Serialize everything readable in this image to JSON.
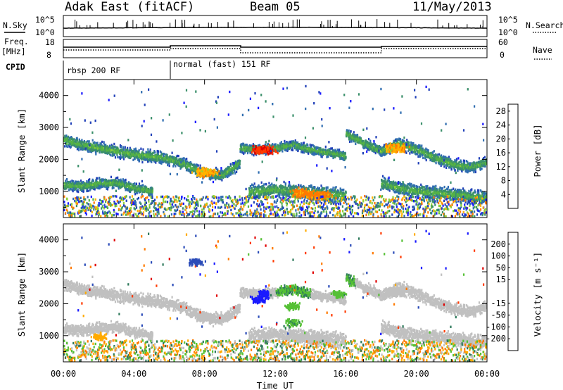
{
  "header": {
    "radar": "Adak East (fitACF)",
    "beam": "Beam 05",
    "date": "11/May/2013"
  },
  "strips": {
    "left_nsky": "N.Sky",
    "left_freq_top": "Freq.",
    "left_freq_unit": "[MHz]",
    "left_cpid": "CPID",
    "right_nsearch": "N.Search",
    "right_nave": "Nave",
    "noise_ticks_left": [
      "10^5",
      "10^0"
    ],
    "noise_ticks_right": [
      "10^5",
      "10^0"
    ],
    "freq_ticks": [
      "18",
      "8"
    ],
    "nave_ticks": [
      "60",
      "0"
    ],
    "cpid_labels": [
      "rbsp 200 RF",
      "normal (fast) 151 RF"
    ]
  },
  "colors": {
    "power_scale": [
      "#1a1aff",
      "#2040b8",
      "#2f6db0",
      "#3a8f6a",
      "#55b245",
      "#8fd23a",
      "#ffb400",
      "#ff7a00",
      "#ff3b00",
      "#e00000"
    ],
    "velocity_scale": [
      "#1a1aff",
      "#2a4bb8",
      "#2f7a5c",
      "#55c035",
      "#c0c0c0",
      "#c0c0c0",
      "#ffaa00",
      "#ff7a00",
      "#ff3a00",
      "#e00000"
    ]
  },
  "chart_data": [
    {
      "type": "heatmap",
      "name": "power",
      "xlabel": "Time UT",
      "ylabel": "Slant Range [km]",
      "x_ticks": [
        "00:00",
        "04:00",
        "08:00",
        "12:00",
        "16:00",
        "20:00",
        "00:00"
      ],
      "y_ticks": [
        1000,
        2000,
        3000,
        4000
      ],
      "xlim": [
        0,
        24
      ],
      "ylim": [
        180,
        4500
      ],
      "colorbar": {
        "label": "Power [dB]",
        "ticks": [
          4,
          8,
          12,
          16,
          20,
          24,
          28
        ],
        "range": [
          0,
          30
        ]
      },
      "bands": [
        {
          "t": [
            0,
            1,
            2,
            3,
            4,
            5,
            6,
            7,
            8,
            9,
            10
          ],
          "r": [
            2600,
            2450,
            2350,
            2250,
            2150,
            2100,
            2000,
            1800,
            1550,
            1500,
            1900
          ],
          "width": 280
        },
        {
          "t": [
            10,
            11,
            12,
            13,
            14,
            15,
            16
          ],
          "r": [
            2350,
            2300,
            2350,
            2450,
            2300,
            2200,
            2100
          ],
          "width": 220
        },
        {
          "t": [
            16,
            17,
            18,
            19,
            20,
            21,
            22,
            23,
            24
          ],
          "r": [
            2800,
            2500,
            2250,
            2500,
            2300,
            2050,
            1850,
            1750,
            1900
          ],
          "width": 260
        },
        {
          "t": [
            10.5,
            11,
            12,
            13,
            14,
            15,
            16
          ],
          "r": [
            950,
            1000,
            1050,
            1000,
            950,
            900,
            850
          ],
          "width": 350
        },
        {
          "t": [
            0,
            1,
            2,
            3,
            4,
            5
          ],
          "r": [
            1200,
            1150,
            1250,
            1250,
            1100,
            1000
          ],
          "width": 250
        },
        {
          "t": [
            18,
            19,
            20,
            21,
            22,
            23,
            24
          ],
          "r": [
            1250,
            1100,
            1000,
            950,
            900,
            850,
            800
          ],
          "width": 300
        }
      ],
      "hotspots": [
        {
          "t": 8.0,
          "r": 1600,
          "value": 22
        },
        {
          "t": 11.3,
          "r": 2300,
          "value": 28
        },
        {
          "t": 13.5,
          "r": 950,
          "value": 24
        },
        {
          "t": 14.5,
          "r": 850,
          "value": 24
        },
        {
          "t": 18.8,
          "r": 2350,
          "value": 22
        }
      ]
    },
    {
      "type": "heatmap",
      "name": "velocity",
      "xlabel": "Time UT",
      "ylabel": "Slant Range [km]",
      "x_ticks": [
        "00:00",
        "04:00",
        "08:00",
        "12:00",
        "16:00",
        "20:00",
        "00:00"
      ],
      "y_ticks": [
        1000,
        2000,
        3000,
        4000
      ],
      "xlim": [
        0,
        24
      ],
      "ylim": [
        180,
        4500
      ],
      "colorbar": {
        "label": "Velocity [m s⁻¹]",
        "ticks": [
          200,
          100,
          50,
          15,
          -15,
          -50,
          -100,
          -200
        ],
        "range": [
          -250,
          250
        ]
      },
      "features": [
        {
          "t": 11.0,
          "r": 2100,
          "value": 250
        },
        {
          "t": 13.0,
          "r": 1900,
          "value": 40
        },
        {
          "t": 13.0,
          "r": 1400,
          "value": 45
        },
        {
          "t": 15.5,
          "r": 2300,
          "value": 40
        },
        {
          "t": 7.5,
          "r": 3300,
          "value": 120
        },
        {
          "t": 2.0,
          "r": 950,
          "value": -40
        }
      ]
    }
  ]
}
